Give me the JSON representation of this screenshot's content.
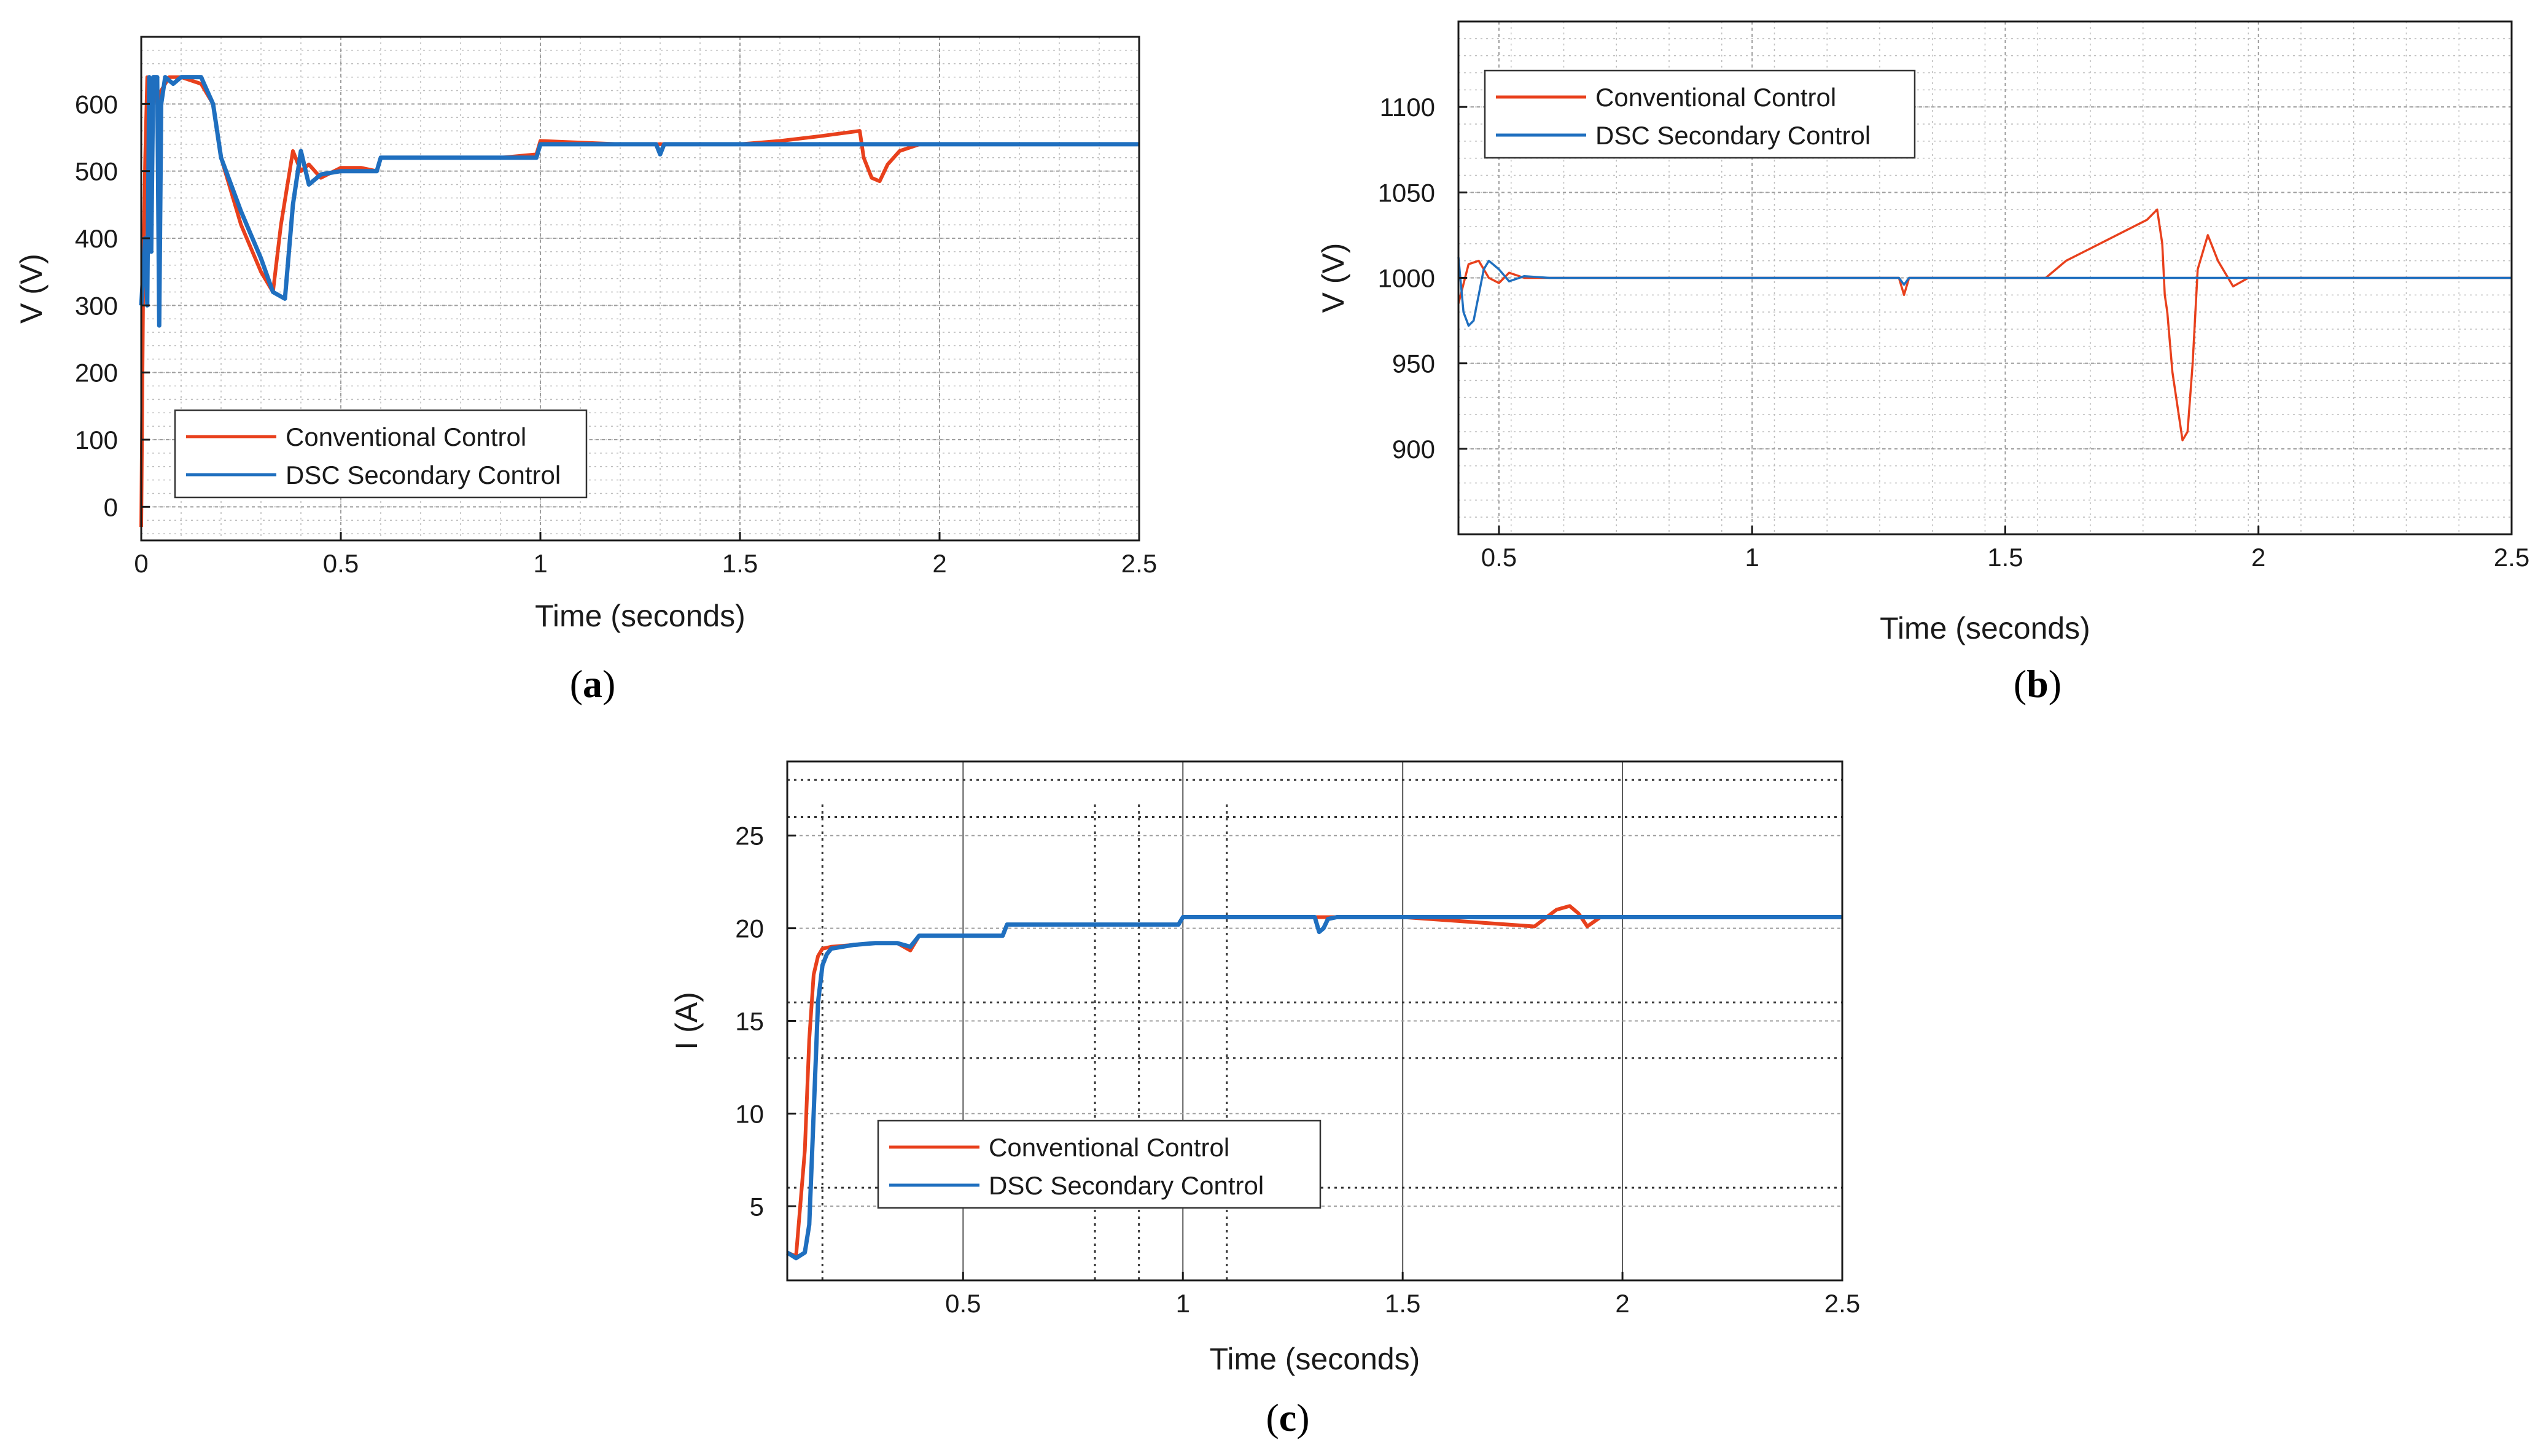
{
  "colors": {
    "conventional": "#e8401c",
    "dsc": "#1f6fbf",
    "axis": "#1a1a1a",
    "grid": "#bdbdbd"
  },
  "chart_data": [
    {
      "id": "a",
      "type": "line",
      "caption_letter": "a",
      "caption_text": "(a)",
      "xlabel": "Time (seconds)",
      "ylabel": "V (V)",
      "xlim": [
        0,
        2.5
      ],
      "ylim": [
        -50,
        700
      ],
      "xticks": [
        0,
        0.5,
        1,
        1.5,
        2,
        2.5
      ],
      "xtick_labels": [
        "0",
        "0.5",
        "1",
        "1.5",
        "2",
        "2.5"
      ],
      "yticks": [
        0,
        100,
        200,
        300,
        400,
        500,
        600
      ],
      "ytick_labels": [
        "0",
        "100",
        "200",
        "300",
        "400",
        "500",
        "600"
      ],
      "legend": {
        "position": "bottom-left",
        "entries": [
          "Conventional Control",
          "DSC Secondary Control"
        ]
      },
      "series": [
        {
          "name": "Conventional Control",
          "color_key": "conventional",
          "x": [
            0,
            0.005,
            0.01,
            0.015,
            0.02,
            0.025,
            0.03,
            0.04,
            0.05,
            0.07,
            0.1,
            0.15,
            0.18,
            0.2,
            0.25,
            0.3,
            0.33,
            0.35,
            0.38,
            0.4,
            0.42,
            0.45,
            0.5,
            0.55,
            0.59,
            0.6,
            0.7,
            0.8,
            0.9,
            0.99,
            1.0,
            1.2,
            1.4,
            1.5,
            1.6,
            1.7,
            1.8,
            1.81,
            1.83,
            1.85,
            1.87,
            1.9,
            1.95,
            2.0,
            2.5
          ],
          "y": [
            -30,
            350,
            520,
            640,
            480,
            560,
            640,
            600,
            620,
            640,
            640,
            630,
            600,
            520,
            420,
            350,
            320,
            420,
            530,
            500,
            510,
            490,
            505,
            505,
            500,
            520,
            520,
            520,
            520,
            525,
            545,
            540,
            540,
            540,
            545,
            552,
            560,
            520,
            490,
            485,
            510,
            530,
            540,
            540,
            540
          ]
        },
        {
          "name": "DSC Secondary Control",
          "color_key": "dsc",
          "x": [
            0,
            0.01,
            0.015,
            0.02,
            0.025,
            0.03,
            0.04,
            0.045,
            0.05,
            0.06,
            0.08,
            0.1,
            0.15,
            0.18,
            0.2,
            0.25,
            0.3,
            0.33,
            0.36,
            0.38,
            0.4,
            0.42,
            0.45,
            0.5,
            0.59,
            0.6,
            0.8,
            0.99,
            1.0,
            1.29,
            1.3,
            1.31,
            1.5,
            1.8,
            2.0,
            2.5
          ],
          "y": [
            300,
            400,
            300,
            640,
            380,
            640,
            640,
            270,
            600,
            640,
            630,
            640,
            640,
            600,
            520,
            440,
            370,
            320,
            310,
            450,
            530,
            480,
            495,
            500,
            500,
            520,
            520,
            520,
            540,
            540,
            525,
            540,
            540,
            540,
            540,
            540
          ]
        }
      ]
    },
    {
      "id": "b",
      "type": "line",
      "caption_letter": "b",
      "caption_text": "(b)",
      "xlabel": "Time (seconds)",
      "ylabel": "V (V)",
      "xlim": [
        0.42,
        2.5
      ],
      "ylim": [
        850,
        1150
      ],
      "xticks": [
        0.5,
        1,
        1.5,
        2,
        2.5
      ],
      "xtick_labels": [
        "0.5",
        "1",
        "1.5",
        "2",
        "2.5"
      ],
      "yticks": [
        900,
        950,
        1000,
        1050,
        1100
      ],
      "ytick_labels": [
        "900",
        "950",
        "1000",
        "1050",
        "1100"
      ],
      "legend": {
        "position": "top-left",
        "entries": [
          "Conventional Control",
          "DSC Secondary Control"
        ]
      },
      "series": [
        {
          "name": "Conventional Control",
          "color_key": "conventional",
          "x": [
            0.42,
            0.44,
            0.46,
            0.48,
            0.5,
            0.52,
            0.55,
            0.6,
            1.0,
            1.29,
            1.3,
            1.31,
            1.32,
            1.5,
            1.58,
            1.62,
            1.66,
            1.7,
            1.74,
            1.78,
            1.8,
            1.81,
            1.815,
            1.82,
            1.83,
            1.85,
            1.86,
            1.87,
            1.88,
            1.9,
            1.92,
            1.95,
            1.98,
            2.0,
            2.5
          ],
          "y": [
            985,
            1008,
            1010,
            1000,
            997,
            1003,
            1000,
            1000,
            1000,
            1000,
            990,
            1000,
            1000,
            1000,
            1000,
            1010,
            1016,
            1022,
            1028,
            1034,
            1040,
            1020,
            990,
            980,
            945,
            905,
            910,
            950,
            1005,
            1025,
            1010,
            995,
            1000,
            1000,
            1000
          ]
        },
        {
          "name": "DSC Secondary Control",
          "color_key": "dsc",
          "x": [
            0.42,
            0.43,
            0.44,
            0.45,
            0.46,
            0.47,
            0.48,
            0.5,
            0.52,
            0.55,
            0.6,
            1.0,
            1.29,
            1.3,
            1.31,
            1.5,
            2.0,
            2.5
          ],
          "y": [
            1012,
            980,
            972,
            975,
            990,
            1005,
            1010,
            1005,
            998,
            1001,
            1000,
            1000,
            1000,
            996,
            1000,
            1000,
            1000,
            1000
          ]
        }
      ]
    },
    {
      "id": "c",
      "type": "line",
      "caption_letter": "c",
      "caption_text": "(c)",
      "xlabel": "Time (seconds)",
      "ylabel": "I (A)",
      "xlim": [
        0.1,
        2.5
      ],
      "ylim": [
        1,
        29
      ],
      "xticks": [
        0.5,
        1,
        1.5,
        2,
        2.5
      ],
      "xtick_labels": [
        "0.5",
        "1",
        "1.5",
        "2",
        "2.5"
      ],
      "yticks": [
        5,
        10,
        15,
        20,
        25
      ],
      "ytick_labels": [
        "5",
        "10",
        "15",
        "20",
        "25"
      ],
      "legend": {
        "position": "bottom-left",
        "entries": [
          "Conventional Control",
          "DSC Secondary Control"
        ]
      },
      "series": [
        {
          "name": "Conventional Control",
          "color_key": "conventional",
          "x": [
            0.1,
            0.12,
            0.14,
            0.15,
            0.16,
            0.17,
            0.18,
            0.2,
            0.25,
            0.3,
            0.35,
            0.38,
            0.4,
            0.42,
            0.5,
            0.59,
            0.6,
            0.8,
            0.99,
            1.0,
            1.5,
            1.8,
            1.85,
            1.88,
            1.9,
            1.92,
            1.95,
            2.0,
            2.5
          ],
          "y": [
            2.5,
            2.3,
            8,
            14,
            17.5,
            18.5,
            18.9,
            19.0,
            19.1,
            19.2,
            19.2,
            18.8,
            19.6,
            19.6,
            19.6,
            19.6,
            20.2,
            20.2,
            20.2,
            20.6,
            20.6,
            20.1,
            21.0,
            21.2,
            20.8,
            20.1,
            20.6,
            20.6,
            20.6
          ]
        },
        {
          "name": "DSC Secondary Control",
          "color_key": "dsc",
          "x": [
            0.1,
            0.12,
            0.14,
            0.15,
            0.16,
            0.17,
            0.18,
            0.19,
            0.2,
            0.25,
            0.3,
            0.35,
            0.38,
            0.4,
            0.42,
            0.5,
            0.59,
            0.6,
            0.8,
            0.99,
            1.0,
            1.3,
            1.31,
            1.32,
            1.33,
            1.35,
            1.5,
            2.0,
            2.5
          ],
          "y": [
            2.5,
            2.2,
            2.5,
            4,
            10,
            16,
            18,
            18.6,
            18.9,
            19.1,
            19.2,
            19.2,
            19.0,
            19.6,
            19.6,
            19.6,
            19.6,
            20.2,
            20.2,
            20.2,
            20.6,
            20.6,
            19.8,
            20.0,
            20.5,
            20.6,
            20.6,
            20.6,
            20.6
          ]
        }
      ]
    }
  ]
}
